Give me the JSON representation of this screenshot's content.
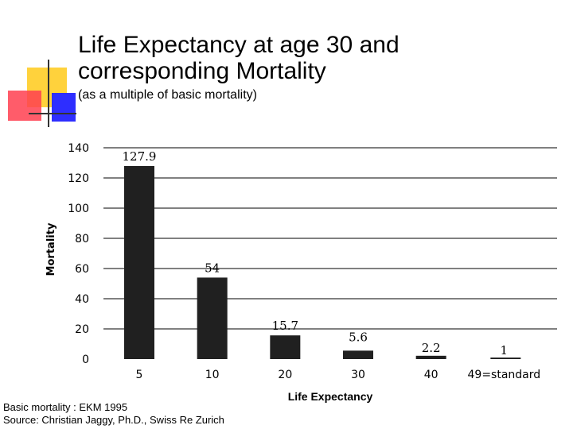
{
  "title": "Life Expectancy at age 30 and corresponding Mortality",
  "subtitle": "(as a multiple of basic mortality)",
  "source_lines": [
    "Basic mortality : EKM 1995",
    "Source: Christian Jaggy, Ph.D., Swiss Re Zurich"
  ],
  "colors": {
    "bar": "#202020",
    "grid": "#000000",
    "deco_yellow": "#FFD23C",
    "deco_red": "#FF2233",
    "deco_blue": "#2E2EFF"
  },
  "chart_data": {
    "type": "bar",
    "categories": [
      "5",
      "10",
      "20",
      "30",
      "40",
      "49=standard"
    ],
    "values": [
      127.9,
      54,
      15.7,
      5.6,
      2.2,
      1
    ],
    "data_labels": [
      "127.9",
      "54",
      "15.7",
      "5.6",
      "2.2",
      "1"
    ],
    "xlabel": "Life Expectancy",
    "ylabel": "Mortality",
    "ylim": [
      0,
      140
    ],
    "yticks": [
      0,
      20,
      40,
      60,
      80,
      100,
      120,
      140
    ],
    "grid": true
  }
}
